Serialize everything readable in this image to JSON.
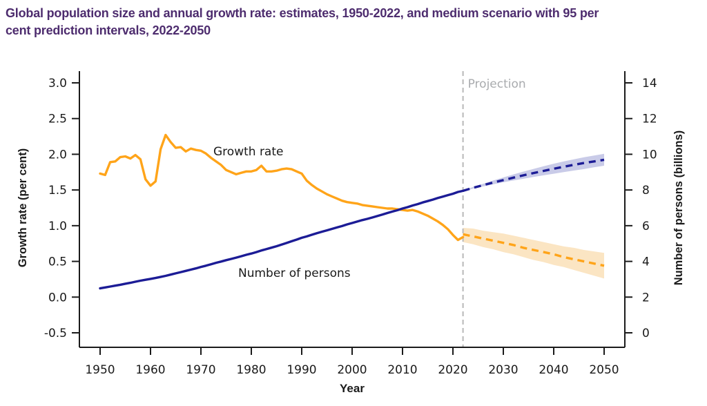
{
  "header": {
    "title": "Global population size and annual growth rate: estimates, 1950-2022, and medium scenario with 95 per cent prediction intervals, 2022-2050",
    "title_lines": [
      "Global population size and annual growth rate: estimates, 1950-2022, and medium scenario with 95 per",
      "cent prediction intervals, 2022-2050"
    ],
    "title_color": "#4D2C6E"
  },
  "chart_data": {
    "type": "line",
    "title": "Global population size and annual growth rate: estimates, 1950-2022, and medium scenario with 95 per cent prediction intervals, 2022-2050",
    "x_axis": {
      "label": "Year",
      "tick_labels": [
        "1950",
        "1960",
        "1970",
        "1980",
        "1990",
        "2000",
        "2010",
        "2020",
        "2030",
        "2040",
        "2050"
      ],
      "range": [
        1946,
        2054
      ]
    },
    "y_axis_left": {
      "label": "Growth rate (per cent)",
      "tick_labels": [
        "3.0",
        "2.5",
        "2.0",
        "1.5",
        "1.0",
        "0.5",
        "0.0",
        "-0.5"
      ],
      "range": [
        -0.7,
        3.2
      ]
    },
    "y_axis_right": {
      "label": "Number of persons (billions)",
      "tick_labels": [
        "14",
        "12",
        "10",
        "8",
        "6",
        "4",
        "2",
        "0"
      ],
      "range": [
        -0.85,
        14.85
      ]
    },
    "annotations": {
      "projection_divider_year": 2022,
      "projection_label": "Projection",
      "projection_label_color": "#A9ABAE",
      "divider_color": "#BDBDBD",
      "growth_series_label": "Growth rate",
      "population_series_label": "Number of persons",
      "inplot_label_color": "#1A1A1A"
    },
    "colors": {
      "growth": "#FFA419",
      "growth_band": "#FBE5C3",
      "population": "#1C1C96",
      "population_band": "#C9CBE8",
      "axis": "#1A1A1A"
    },
    "legend": "none",
    "grid": false,
    "series": [
      {
        "name": "growth-rate-95pct-interval",
        "band": true,
        "axis": "left",
        "color_key": "growth_band",
        "x": [
          2022,
          2024,
          2026,
          2028,
          2030,
          2032,
          2034,
          2036,
          2038,
          2040,
          2042,
          2044,
          2046,
          2048,
          2050
        ],
        "upper": [
          0.97,
          0.96,
          0.93,
          0.91,
          0.89,
          0.86,
          0.83,
          0.8,
          0.77,
          0.74,
          0.71,
          0.69,
          0.66,
          0.64,
          0.62
        ],
        "lower": [
          0.77,
          0.74,
          0.7,
          0.67,
          0.63,
          0.6,
          0.56,
          0.52,
          0.49,
          0.45,
          0.42,
          0.38,
          0.34,
          0.3,
          0.26
        ]
      },
      {
        "name": "population-95pct-interval",
        "band": true,
        "axis": "right",
        "color_key": "population_band",
        "x": [
          2022,
          2024,
          2026,
          2028,
          2030,
          2032,
          2034,
          2036,
          2038,
          2040,
          2042,
          2044,
          2046,
          2048,
          2050
        ],
        "upper": [
          7.97,
          8.17,
          8.35,
          8.53,
          8.7,
          8.87,
          9.03,
          9.18,
          9.33,
          9.47,
          9.6,
          9.72,
          9.83,
          9.93,
          10.03
        ],
        "lower": [
          7.93,
          8.07,
          8.2,
          8.32,
          8.43,
          8.53,
          8.63,
          8.73,
          8.82,
          8.91,
          9.0,
          9.09,
          9.17,
          9.27,
          9.36
        ]
      },
      {
        "name": "growth-rate-estimates",
        "label": "Growth rate",
        "axis": "left",
        "style": "solid",
        "color_key": "growth",
        "x_start": 1950,
        "x_step": 1,
        "values": [
          1.73,
          1.71,
          1.89,
          1.9,
          1.96,
          1.97,
          1.94,
          1.99,
          1.93,
          1.65,
          1.56,
          1.62,
          2.07,
          2.27,
          2.17,
          2.09,
          2.1,
          2.04,
          2.08,
          2.06,
          2.05,
          2.01,
          1.95,
          1.9,
          1.85,
          1.78,
          1.75,
          1.72,
          1.74,
          1.76,
          1.76,
          1.78,
          1.84,
          1.76,
          1.76,
          1.77,
          1.79,
          1.8,
          1.79,
          1.76,
          1.73,
          1.63,
          1.57,
          1.52,
          1.48,
          1.44,
          1.41,
          1.38,
          1.35,
          1.33,
          1.32,
          1.31,
          1.29,
          1.28,
          1.27,
          1.26,
          1.25,
          1.24,
          1.24,
          1.23,
          1.22,
          1.21,
          1.22,
          1.2,
          1.17,
          1.14,
          1.1,
          1.06,
          1.01,
          0.95,
          0.87,
          0.8,
          0.84
        ]
      },
      {
        "name": "population-estimates",
        "label": "Number of persons",
        "axis": "right",
        "style": "solid",
        "color_key": "population",
        "x_start": 1950,
        "x_step": 1,
        "values": [
          2.49,
          2.54,
          2.59,
          2.64,
          2.69,
          2.75,
          2.8,
          2.86,
          2.92,
          2.97,
          3.02,
          3.07,
          3.13,
          3.19,
          3.26,
          3.33,
          3.4,
          3.47,
          3.54,
          3.61,
          3.69,
          3.76,
          3.84,
          3.92,
          3.99,
          4.07,
          4.14,
          4.21,
          4.29,
          4.37,
          4.44,
          4.52,
          4.61,
          4.69,
          4.77,
          4.85,
          4.94,
          5.03,
          5.13,
          5.22,
          5.32,
          5.4,
          5.49,
          5.58,
          5.66,
          5.74,
          5.82,
          5.9,
          5.98,
          6.07,
          6.15,
          6.23,
          6.31,
          6.38,
          6.46,
          6.54,
          6.62,
          6.71,
          6.79,
          6.87,
          6.96,
          7.04,
          7.13,
          7.21,
          7.3,
          7.38,
          7.46,
          7.55,
          7.63,
          7.71,
          7.79,
          7.89,
          7.95
        ]
      },
      {
        "name": "growth-rate-projection-median",
        "axis": "left",
        "style": "dashed",
        "color_key": "growth",
        "x": [
          2022,
          2024,
          2026,
          2028,
          2030,
          2032,
          2034,
          2036,
          2038,
          2040,
          2042,
          2044,
          2046,
          2048,
          2050
        ],
        "values": [
          0.88,
          0.85,
          0.82,
          0.79,
          0.76,
          0.73,
          0.69,
          0.66,
          0.63,
          0.6,
          0.56,
          0.53,
          0.5,
          0.47,
          0.44
        ]
      },
      {
        "name": "population-projection-median",
        "axis": "right",
        "style": "dashed",
        "color_key": "population",
        "x": [
          2022,
          2024,
          2026,
          2028,
          2030,
          2032,
          2034,
          2036,
          2038,
          2040,
          2042,
          2044,
          2046,
          2048,
          2050
        ],
        "values": [
          7.95,
          8.12,
          8.27,
          8.42,
          8.55,
          8.69,
          8.82,
          8.95,
          9.07,
          9.19,
          9.3,
          9.41,
          9.51,
          9.6,
          9.69
        ]
      }
    ]
  }
}
